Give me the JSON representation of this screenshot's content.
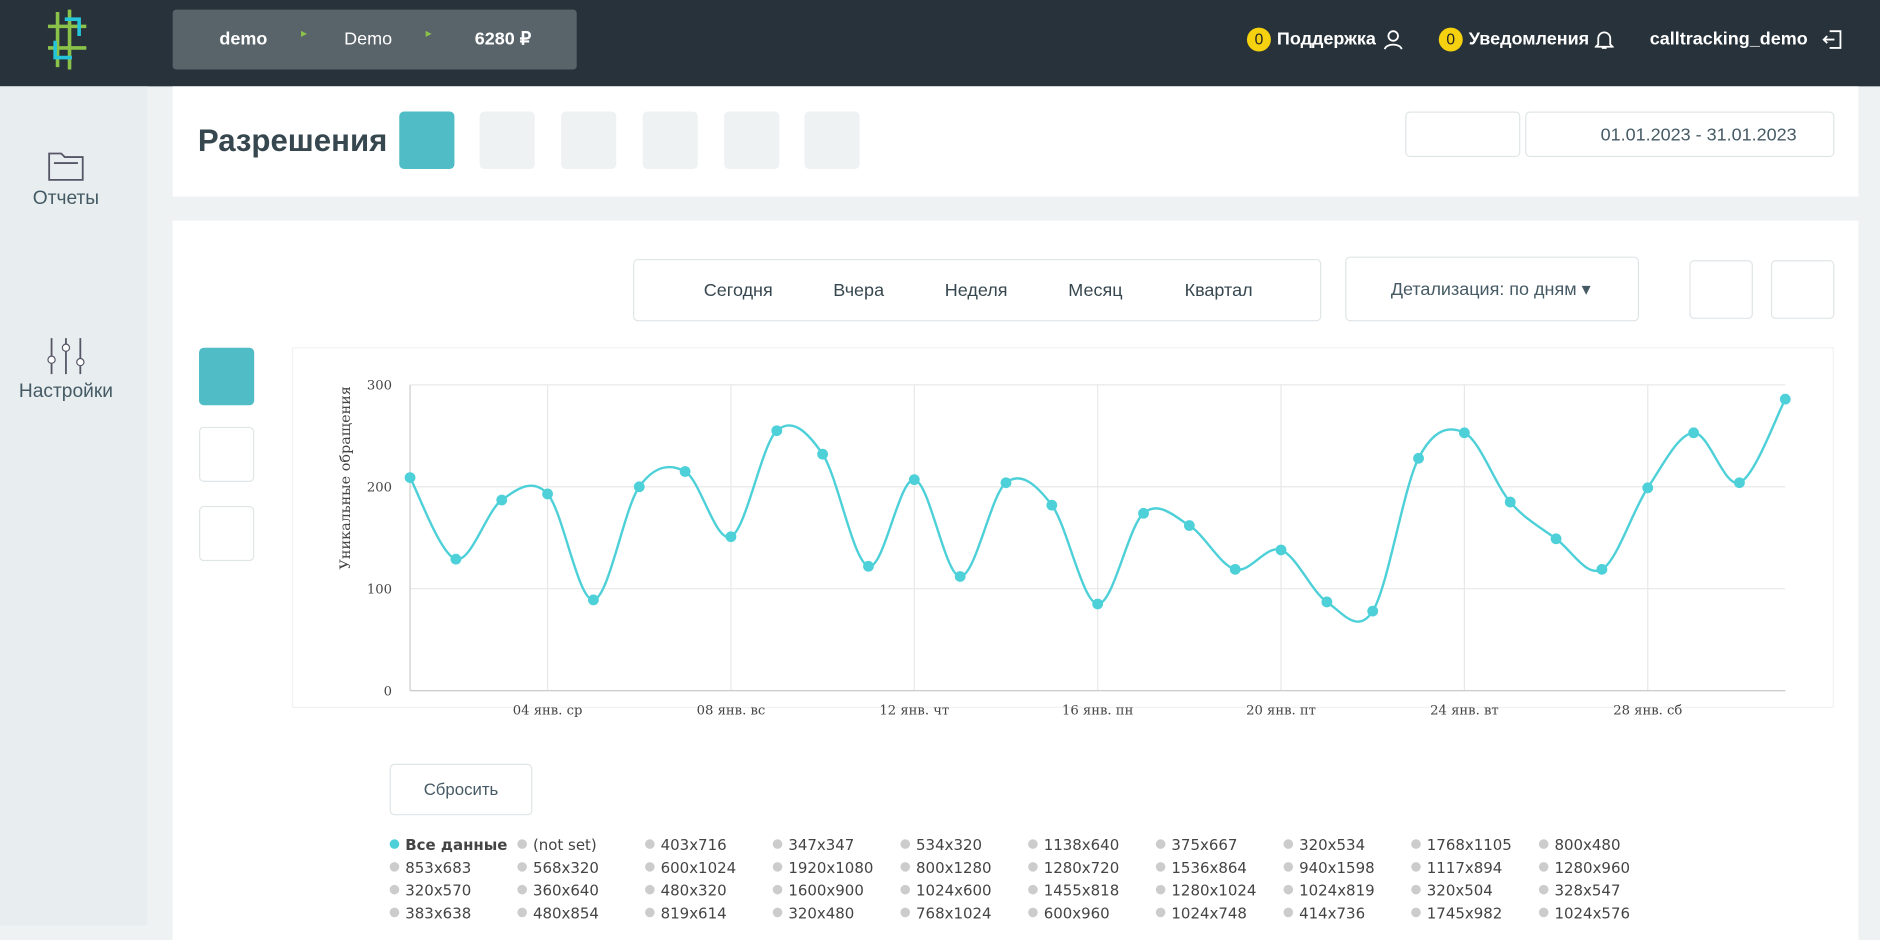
{
  "header": {
    "account": "demo",
    "project": "Demo",
    "balance": "6280 ₽",
    "support_count": "0",
    "support": "Поддержка",
    "notifications_count": "0",
    "notifications": "Уведомления",
    "user": "calltracking_demo"
  },
  "sidebar": [
    "Отчеты",
    "Настройки"
  ],
  "page": {
    "title": "Разрешения",
    "date_range": "01.01.2023 - 31.01.2023"
  },
  "periods": [
    "Сегодня",
    "Вчера",
    "Неделя",
    "Месяц",
    "Квартал"
  ],
  "detail": "Детализация: по дням",
  "reset": "Сбросить",
  "chart_data": {
    "type": "line",
    "y_label": "Уникальные обращения",
    "categories": [
      null,
      null,
      null,
      "04 янв. ср",
      null,
      null,
      null,
      "08 янв. вс",
      null,
      null,
      null,
      "12 янв. чт",
      null,
      null,
      null,
      "16 янв. пн",
      null,
      null,
      null,
      "20 янв. пт",
      null,
      null,
      null,
      "24 янв. вт",
      null,
      null,
      null,
      "28 янв. сб",
      null,
      null,
      null
    ],
    "ylim": [
      0,
      300
    ],
    "yticks": [
      0,
      100,
      200,
      300
    ],
    "grid": true,
    "series": [
      {
        "name": "Все данные",
        "color": "#4dd0d8",
        "values": [
          209,
          129,
          187,
          193,
          89,
          200,
          215,
          151,
          255,
          232,
          122,
          207,
          112,
          204,
          182,
          85,
          174,
          162,
          119,
          138,
          87,
          78,
          228,
          253,
          185,
          149,
          119,
          199,
          253,
          204,
          286
        ]
      }
    ],
    "legend_hidden": [
      "(not set)",
      "403x716",
      "347x347",
      "534x320",
      "1138x640",
      "375x667",
      "320x534",
      "1768x1105",
      "800x480",
      "853x683",
      "568x320",
      "600x1024",
      "1920x1080",
      "800x1280",
      "1280x720",
      "1536x864",
      "940x1598",
      "1117x894",
      "1280x960",
      "320x570",
      "360x640",
      "480x320",
      "1600x900",
      "1024x600",
      "1455x818",
      "1280x1024",
      "1024x819",
      "320x504",
      "328x547",
      "383x638",
      "480x854",
      "819x614",
      "320x480",
      "768x1024",
      "600x960",
      "1024x748",
      "414x736",
      "1745x982",
      "1024x576"
    ]
  }
}
